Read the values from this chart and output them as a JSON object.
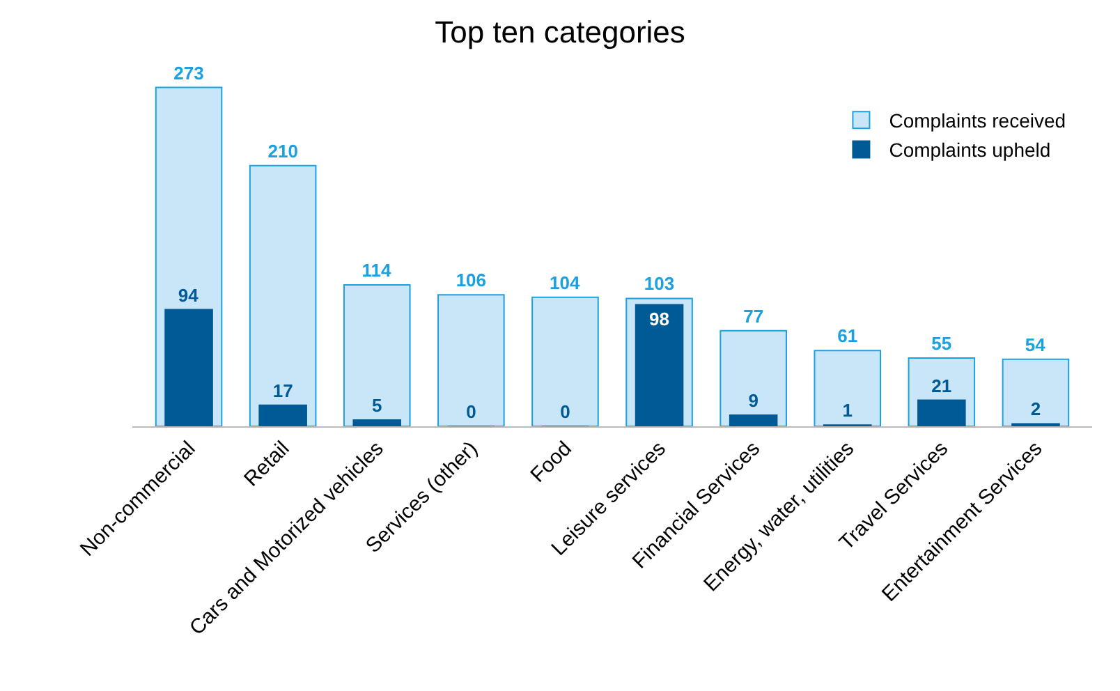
{
  "chart_data": {
    "type": "bar",
    "title": "Top ten categories",
    "categories": [
      "Non-commercial",
      "Retail",
      "Cars and Motorized vehicles",
      "Services (other)",
      "Food",
      "Leisure services",
      "Financial Services",
      "Energy, water, utilities",
      "Travel Services",
      "Entertainment Services"
    ],
    "series": [
      {
        "name": "Complaints received",
        "color": "#c9e6f8",
        "values": [
          273,
          210,
          114,
          106,
          104,
          103,
          77,
          61,
          55,
          54
        ]
      },
      {
        "name": "Complaints upheld",
        "color": "#005a96",
        "values": [
          94,
          17,
          5,
          0,
          0,
          98,
          9,
          1,
          21,
          2
        ]
      }
    ],
    "data_labels": true,
    "legend": "top right",
    "grid": false
  }
}
